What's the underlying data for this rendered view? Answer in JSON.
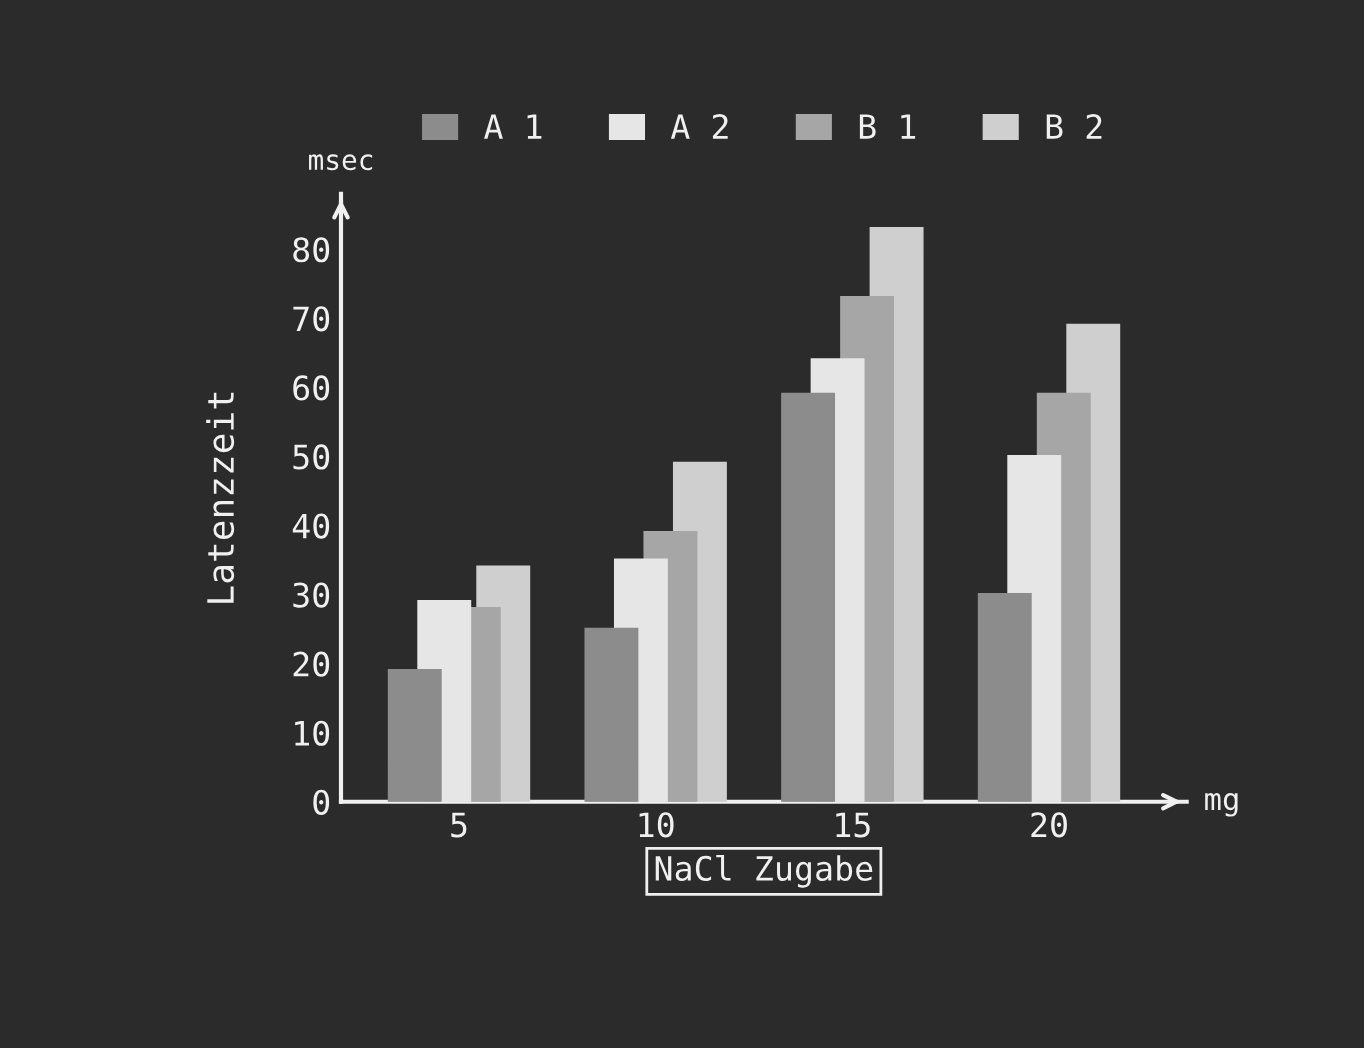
{
  "chart_data": {
    "type": "bar",
    "categories": [
      "5",
      "10",
      "15",
      "20"
    ],
    "xlabel": "NaCl Zugabe",
    "ylabel": "Latenzzeit",
    "annotations": [
      "msec",
      "mg"
    ],
    "series": [
      {
        "name": "A 1",
        "color": "#8c8c8c",
        "values": [
          19,
          25,
          59,
          30
        ]
      },
      {
        "name": "A 2",
        "color": "#e6e6e6",
        "values": [
          29,
          35,
          64,
          50
        ]
      },
      {
        "name": "B 1",
        "color": "#a6a6a6",
        "values": [
          28,
          39,
          73,
          59
        ]
      },
      {
        "name": "B 2",
        "color": "#cfcfcf",
        "values": [
          34,
          49,
          83,
          69
        ]
      }
    ],
    "ylim": [
      0,
      88
    ],
    "yticks": [
      0,
      10,
      20,
      30,
      40,
      50,
      60,
      70,
      80
    ],
    "grid": false,
    "legend": "top"
  }
}
